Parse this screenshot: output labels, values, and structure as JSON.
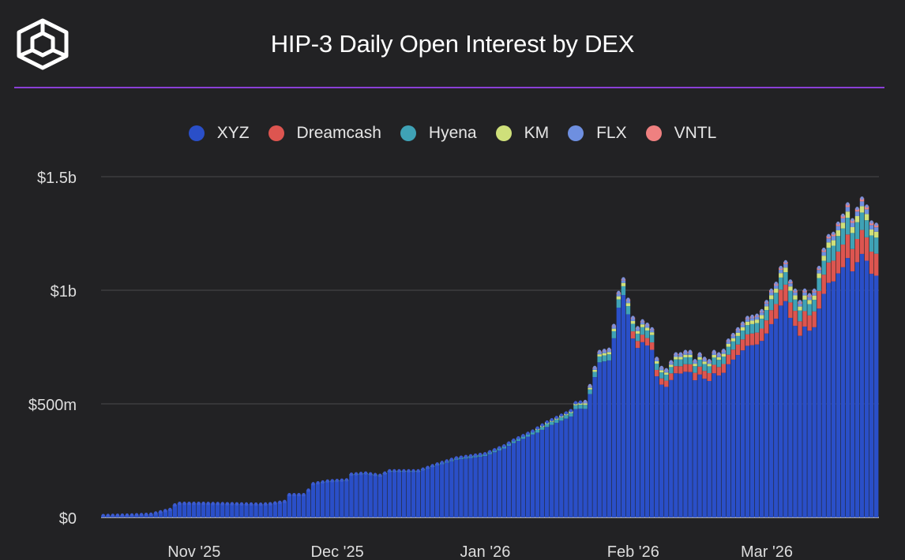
{
  "title": "HIP-3 Daily Open Interest by DEX",
  "logo_icon": "cube-icon",
  "colors": {
    "background": "#222224",
    "divider": "#8a3fd6",
    "grid": "#4a4a4c",
    "xyz": "#2a4fc8",
    "dreamcash": "#dd5550",
    "hyena": "#3fa2b6",
    "km": "#cfe07a",
    "flx": "#6e8fe0",
    "vntl": "#ef8080"
  },
  "chart_data": {
    "type": "bar",
    "stacked": true,
    "title": "HIP-3 Daily Open Interest by DEX",
    "xlabel": "",
    "ylabel": "",
    "ylim": [
      0,
      1500
    ],
    "y_unit": "millions USD",
    "y_ticks": [
      {
        "value": 0,
        "label": "$0"
      },
      {
        "value": 500,
        "label": "$500m"
      },
      {
        "value": 1000,
        "label": "$1b"
      },
      {
        "value": 1500,
        "label": "$1.5b"
      }
    ],
    "x_range_days": [
      0,
      162
    ],
    "x_ticks": [
      {
        "day": 19,
        "label": "Nov '25"
      },
      {
        "day": 49,
        "label": "Dec '25"
      },
      {
        "day": 80,
        "label": "Jan '26"
      },
      {
        "day": 111,
        "label": "Feb '26"
      },
      {
        "day": 139,
        "label": "Mar '26"
      }
    ],
    "anchors_total": [
      [
        0,
        8
      ],
      [
        5,
        10
      ],
      [
        10,
        14
      ],
      [
        14,
        35
      ],
      [
        15,
        55
      ],
      [
        16,
        62
      ],
      [
        20,
        62
      ],
      [
        27,
        60
      ],
      [
        33,
        58
      ],
      [
        35,
        60
      ],
      [
        38,
        70
      ],
      [
        39,
        100
      ],
      [
        42,
        100
      ],
      [
        43,
        120
      ],
      [
        44,
        148
      ],
      [
        47,
        160
      ],
      [
        51,
        165
      ],
      [
        52,
        190
      ],
      [
        55,
        195
      ],
      [
        58,
        185
      ],
      [
        60,
        205
      ],
      [
        66,
        205
      ],
      [
        70,
        235
      ],
      [
        74,
        262
      ],
      [
        80,
        280
      ],
      [
        84,
        315
      ],
      [
        86,
        340
      ],
      [
        90,
        380
      ],
      [
        93,
        420
      ],
      [
        95,
        440
      ],
      [
        98,
        470
      ],
      [
        99,
        505
      ],
      [
        101,
        510
      ],
      [
        102,
        580
      ],
      [
        103,
        660
      ],
      [
        104,
        730
      ],
      [
        106,
        740
      ],
      [
        107,
        845
      ],
      [
        108,
        990
      ],
      [
        109,
        1050
      ],
      [
        110,
        960
      ],
      [
        111,
        880
      ],
      [
        112,
        835
      ],
      [
        113,
        865
      ],
      [
        114,
        850
      ],
      [
        115,
        830
      ],
      [
        116,
        700
      ],
      [
        117,
        660
      ],
      [
        118,
        650
      ],
      [
        119,
        685
      ],
      [
        120,
        720
      ],
      [
        121,
        720
      ],
      [
        122,
        730
      ],
      [
        123,
        730
      ],
      [
        124,
        690
      ],
      [
        125,
        720
      ],
      [
        126,
        700
      ],
      [
        127,
        690
      ],
      [
        128,
        730
      ],
      [
        129,
        720
      ],
      [
        130,
        735
      ],
      [
        131,
        780
      ],
      [
        133,
        830
      ],
      [
        135,
        880
      ],
      [
        137,
        890
      ],
      [
        138,
        910
      ],
      [
        139,
        950
      ],
      [
        140,
        1000
      ],
      [
        141,
        1030
      ],
      [
        142,
        1100
      ],
      [
        143,
        1125
      ],
      [
        144,
        1040
      ],
      [
        145,
        1000
      ],
      [
        146,
        950
      ],
      [
        147,
        1000
      ],
      [
        148,
        980
      ],
      [
        149,
        1000
      ],
      [
        150,
        1100
      ],
      [
        151,
        1180
      ],
      [
        152,
        1240
      ],
      [
        153,
        1250
      ],
      [
        154,
        1295
      ],
      [
        155,
        1330
      ],
      [
        156,
        1380
      ],
      [
        157,
        1310
      ],
      [
        158,
        1360
      ],
      [
        159,
        1405
      ],
      [
        160,
        1370
      ],
      [
        161,
        1300
      ],
      [
        162,
        1290
      ]
    ],
    "series": [
      {
        "name": "XYZ",
        "color": "#2a4fc8"
      },
      {
        "name": "Dreamcash",
        "color": "#dd5550"
      },
      {
        "name": "Hyena",
        "color": "#3fa2b6"
      },
      {
        "name": "KM",
        "color": "#cfe07a"
      },
      {
        "name": "FLX",
        "color": "#6e8fe0"
      },
      {
        "name": "VNTL",
        "color": "#ef8080"
      }
    ]
  }
}
